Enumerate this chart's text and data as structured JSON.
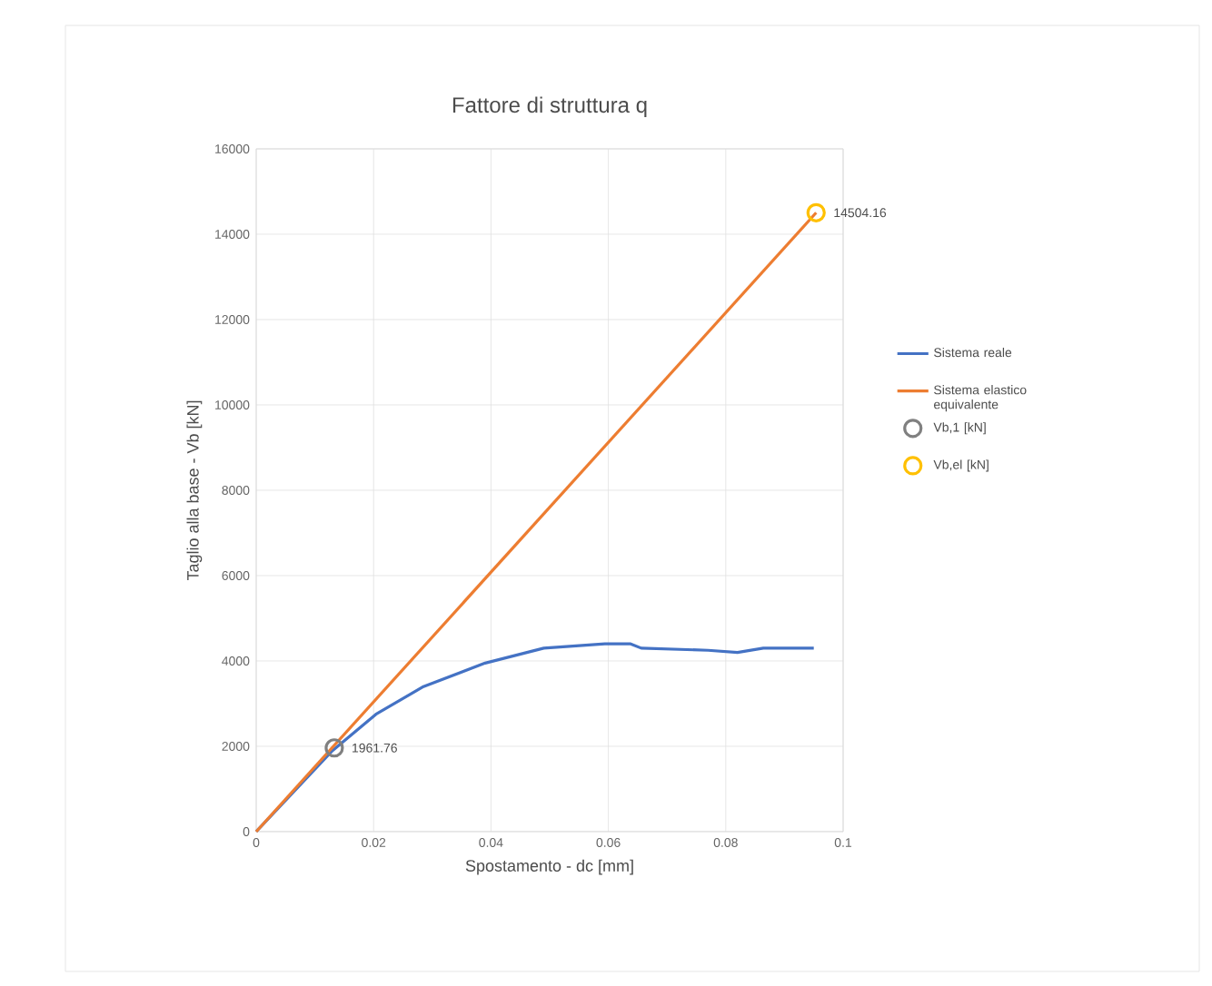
{
  "chart_data": {
    "type": "line",
    "title": "Fattore di struttura q",
    "xlabel": "Spostamento - dc [mm]",
    "ylabel": "Taglio alla base - Vb [kN]",
    "xlim": [
      0,
      0.1
    ],
    "ylim": [
      0,
      16000
    ],
    "xticks": [
      0,
      0.02,
      0.04,
      0.06,
      0.08,
      0.1
    ],
    "yticks": [
      0,
      2000,
      4000,
      6000,
      8000,
      10000,
      12000,
      14000,
      16000
    ],
    "grid": true,
    "legend": "right",
    "series": [
      {
        "name": "Sistema reale",
        "color": "#4472c4",
        "marker": "none",
        "x": [
          0,
          0.013,
          0.0204,
          0.0285,
          0.039,
          0.049,
          0.0594,
          0.0638,
          0.0656,
          0.077,
          0.082,
          0.0864,
          0.095
        ],
        "values": [
          0,
          1900,
          2750,
          3400,
          3950,
          4300,
          4400,
          4400,
          4300,
          4250,
          4200,
          4300,
          4300
        ]
      },
      {
        "name": "Sistema elastico equivalente",
        "color": "#ed7d31",
        "marker": "none",
        "x": [
          0,
          0.0954
        ],
        "values": [
          0,
          14504.16
        ]
      },
      {
        "name": "Vb,1 [kN]",
        "type": "scatter",
        "color": "#808080",
        "marker": "circle",
        "x": [
          0.0133
        ],
        "values": [
          1961.76
        ],
        "value_labels": [
          "1961.76"
        ]
      },
      {
        "name": "Vb,el [kN]",
        "type": "scatter",
        "color": "#ffc000",
        "marker": "circle",
        "x": [
          0.0954
        ],
        "values": [
          14504.16
        ],
        "value_labels": [
          "14504.16"
        ]
      }
    ]
  }
}
